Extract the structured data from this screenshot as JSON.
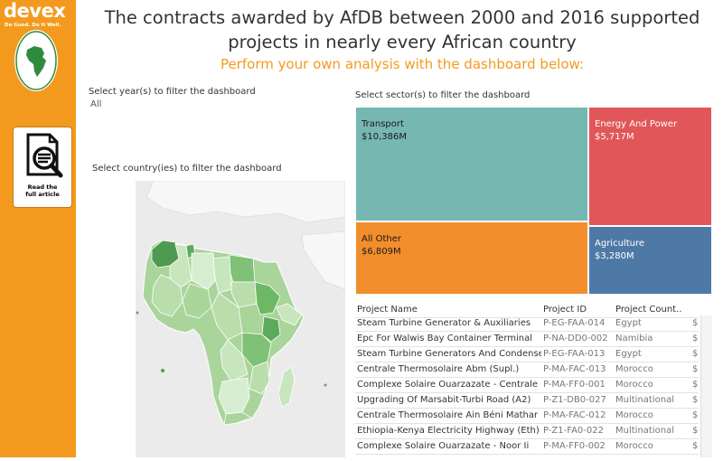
{
  "sidebar": {
    "logo": "devex",
    "tagline": "Do Good. Do It Well.",
    "seal_text": "BANQUE AFRICAINE DE DÉVELOPPEMENT · AFRICAN DEVELOPMENT BANK",
    "article_label_1": "Read the",
    "article_label_2": "full article"
  },
  "header": {
    "title_line1": "The contracts awarded by AfDB between 2000 and 2016 supported",
    "title_line2": "projects in nearly every African country",
    "subtitle": "Perform your own analysis with the dashboard below:"
  },
  "filters": {
    "year_label": "Select year(s) to filter the dashboard",
    "year_value": "All",
    "country_label": "Select country(ies) to filter the dashboard",
    "sector_label": "Select sector(s) to filter the dashboard"
  },
  "colors": {
    "accent": "#f39a1e",
    "transport": "#76b7b2",
    "energy": "#e15759",
    "other": "#f28e2b",
    "agriculture": "#4e79a7"
  },
  "sectors": [
    {
      "name": "Transport",
      "value": "$10,386M"
    },
    {
      "name": "Energy And Power",
      "value": "$5,717M"
    },
    {
      "name": "All Other",
      "value": "$6,809M"
    },
    {
      "name": "Agriculture",
      "value": "$3,280M"
    }
  ],
  "table": {
    "headers": [
      "Project Name",
      "Project ID",
      "Project Count..",
      ""
    ],
    "rows": [
      [
        "Steam Turbine Generator & Auxiliaries",
        "P-EG-FAA-014",
        "Egypt",
        "$"
      ],
      [
        "Epc  For Walwis Bay Container Terminal",
        "P-NA-DD0-002",
        "Namibia",
        "$"
      ],
      [
        "Steam Turbine Generators And Condense",
        "P-EG-FAA-013",
        "Egypt",
        "$"
      ],
      [
        "Centrale Thermosolaire Abm (Supl.)",
        "P-MA-FAC-013",
        "Morocco",
        "$"
      ],
      [
        "Complexe Solaire Ouarzazate - Centrale N",
        "P-MA-FF0-001",
        "Morocco",
        "$"
      ],
      [
        "Upgrading Of Marsabit-Turbi Road (A2)",
        "P-Z1-DB0-027",
        "Multinational",
        "$"
      ],
      [
        "Centrale Thermosolaire Ain Béni Mathar",
        "P-MA-FAC-012",
        "Morocco",
        "$"
      ],
      [
        "Ethiopia-Kenya Electricity Highway (Eth)",
        "P-Z1-FA0-022",
        "Multinational",
        "$"
      ],
      [
        "Complexe Solaire Ouarzazate - Noor Ii",
        "P-MA-FF0-002",
        "Morocco",
        "$"
      ]
    ]
  }
}
